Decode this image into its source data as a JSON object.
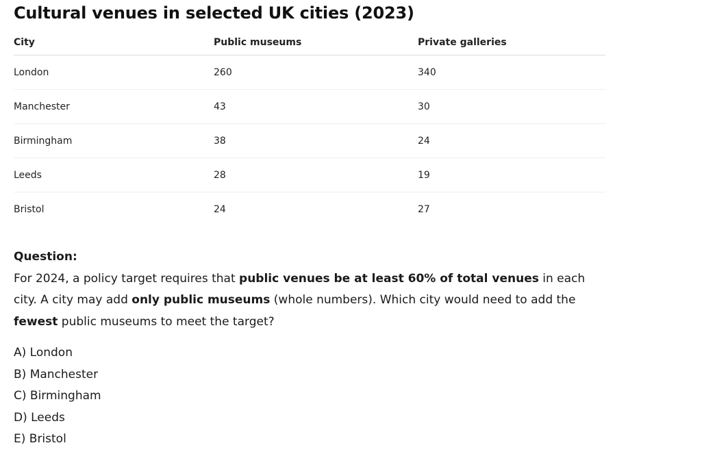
{
  "title": "Cultural venues in selected UK cities (2023)",
  "table": {
    "headers": [
      "City",
      "Public museums",
      "Private galleries"
    ],
    "rows": [
      [
        "London",
        "260",
        "340"
      ],
      [
        "Manchester",
        "43",
        "30"
      ],
      [
        "Birmingham",
        "38",
        "24"
      ],
      [
        "Leeds",
        "28",
        "19"
      ],
      [
        "Bristol",
        "24",
        "27"
      ]
    ]
  },
  "question": {
    "label": "Question:",
    "parts": [
      "For 2024, a policy target requires that ",
      "public venues be at least 60% of total venues",
      " in each city. A city may add ",
      "only public museums",
      " (whole numbers). Which city would need to add the ",
      "fewest",
      " public museums to meet the target?"
    ]
  },
  "options": [
    "A) London",
    "B) Manchester",
    "C) Birmingham",
    "D) Leeds",
    "E) Bristol"
  ]
}
